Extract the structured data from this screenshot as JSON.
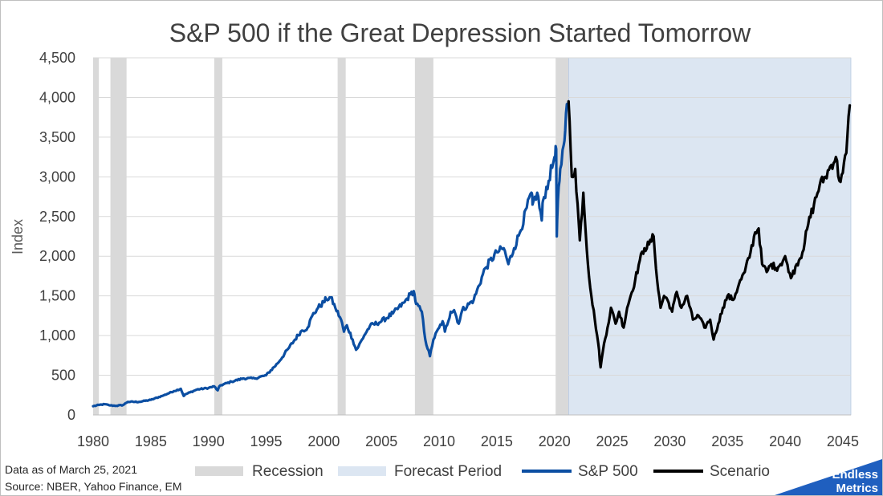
{
  "chart_data": {
    "type": "line",
    "title": "S&P 500 if the Great Depression Started Tomorrow",
    "ylabel": "Index",
    "xlabel": "",
    "xlim": [
      1980,
      2045.7
    ],
    "ylim": [
      0,
      4500
    ],
    "x_ticks": [
      "1980",
      "1985",
      "1990",
      "1995",
      "2000",
      "2005",
      "2010",
      "2015",
      "2020",
      "2025",
      "2030",
      "2035",
      "2040",
      "2045"
    ],
    "y_ticks": [
      "0",
      "500",
      "1,000",
      "1,500",
      "2,000",
      "2,500",
      "3,000",
      "3,500",
      "4,000",
      "4,500"
    ],
    "grid": "horizontal",
    "legend_position": "bottom",
    "legend": [
      "Recession",
      "Forecast Period",
      "S&P 500",
      "Scenario"
    ],
    "colors": {
      "recession": "#d9d9d9",
      "forecast": "#dce6f2",
      "sp500": "#0b4ea2",
      "scenario": "#000000",
      "grid": "#d9d9d9",
      "brand": "#1f5fbf"
    },
    "recessions": [
      [
        1980.0,
        1980.5
      ],
      [
        1981.5,
        1982.9
      ],
      [
        1990.5,
        1991.2
      ],
      [
        2001.2,
        2001.9
      ],
      [
        2007.9,
        2009.5
      ],
      [
        2020.1,
        2021.2
      ]
    ],
    "forecast_period": [
      2021.22,
      2045.7
    ],
    "series": [
      {
        "name": "S&P 500",
        "x": [
          1980,
          1980.5,
          1981,
          1981.5,
          1982,
          1982.6,
          1983,
          1984,
          1985,
          1986,
          1987,
          1987.6,
          1987.85,
          1988,
          1989,
          1990,
          1990.5,
          1990.8,
          1991,
          1992,
          1993,
          1994,
          1995,
          1996,
          1997,
          1998,
          1998.6,
          1999,
          1999.5,
          2000,
          2000.2,
          2000.6,
          2001,
          2001.5,
          2001.75,
          2002,
          2002.5,
          2002.8,
          2003,
          2003.5,
          2004,
          2005,
          2006,
          2007,
          2007.5,
          2007.8,
          2008,
          2008.5,
          2008.8,
          2009.2,
          2009.5,
          2010,
          2010.3,
          2010.5,
          2011,
          2011.3,
          2011.7,
          2012,
          2013,
          2014,
          2015,
          2015.6,
          2016,
          2016.5,
          2017,
          2018,
          2018.1,
          2018.5,
          2018.9,
          2019,
          2019.5,
          2020,
          2020.15,
          2020.2,
          2020.3,
          2020.5,
          2020.8,
          2021,
          2021.22
        ],
        "values": [
          110,
          125,
          135,
          120,
          115,
          125,
          165,
          165,
          190,
          240,
          300,
          330,
          240,
          260,
          320,
          340,
          360,
          310,
          370,
          420,
          460,
          460,
          500,
          650,
          850,
          1050,
          1100,
          1250,
          1350,
          1420,
          1460,
          1480,
          1350,
          1200,
          1050,
          1130,
          950,
          820,
          860,
          1000,
          1120,
          1180,
          1280,
          1420,
          1520,
          1560,
          1400,
          1300,
          950,
          740,
          950,
          1100,
          1180,
          1050,
          1300,
          1320,
          1150,
          1320,
          1450,
          1850,
          2050,
          2100,
          1900,
          2100,
          2300,
          2800,
          2650,
          2800,
          2450,
          2700,
          2950,
          3250,
          3350,
          2250,
          2700,
          3100,
          3400,
          3800,
          3950
        ]
      },
      {
        "name": "Scenario",
        "x": [
          2021.22,
          2021.5,
          2021.8,
          2022.2,
          2022.5,
          2022.9,
          2023.2,
          2023.5,
          2023.8,
          2024.0,
          2024.3,
          2024.6,
          2024.9,
          2025.3,
          2025.6,
          2026.0,
          2026.3,
          2026.6,
          2027.0,
          2027.4,
          2027.8,
          2028.2,
          2028.6,
          2028.9,
          2029.2,
          2029.5,
          2029.8,
          2030.2,
          2030.6,
          2031.0,
          2031.5,
          2032.0,
          2032.5,
          2033.0,
          2033.5,
          2033.8,
          2034.2,
          2034.6,
          2035.0,
          2035.5,
          2036.0,
          2036.5,
          2037.0,
          2037.4,
          2037.7,
          2038.0,
          2038.4,
          2038.8,
          2039.2,
          2039.6,
          2040.0,
          2040.3,
          2040.6,
          2041.0,
          2041.5,
          2042.0,
          2042.5,
          2043.0,
          2043.5,
          2044.0,
          2044.4,
          2044.7,
          2045.0,
          2045.3,
          2045.6
        ],
        "values": [
          3950,
          3000,
          3100,
          2200,
          2800,
          1900,
          1500,
          1200,
          900,
          600,
          900,
          1100,
          1350,
          1150,
          1300,
          1100,
          1350,
          1500,
          1700,
          1950,
          2100,
          2150,
          2250,
          1700,
          1350,
          1500,
          1450,
          1300,
          1550,
          1350,
          1500,
          1200,
          1250,
          1100,
          1200,
          950,
          1150,
          1350,
          1500,
          1450,
          1650,
          1800,
          2050,
          2300,
          2350,
          1900,
          1800,
          1900,
          1850,
          1900,
          2000,
          1800,
          1750,
          1900,
          2050,
          2400,
          2650,
          2900,
          3000,
          3150,
          3250,
          2950,
          3050,
          3300,
          3900
        ]
      }
    ]
  },
  "footnote": {
    "data_as_of": "Data as of March 25, 2021",
    "source": "Source: NBER, Yahoo Finance, EM"
  },
  "brand": {
    "line1": "Endless",
    "line2": "Metrics"
  }
}
